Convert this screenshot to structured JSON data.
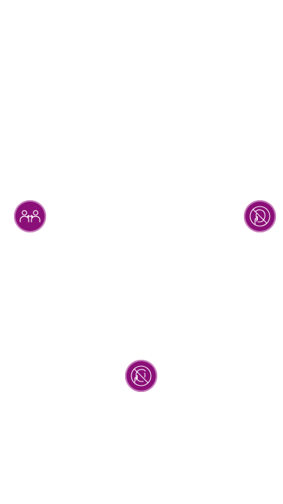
{
  "badges": [
    {
      "icon": "social-distancing-icon",
      "color": "#8b0f78"
    },
    {
      "icon": "no-touching-face-icon",
      "color": "#8b0f78"
    },
    {
      "icon": "no-touching-face-icon",
      "color": "#8b0f78"
    }
  ]
}
